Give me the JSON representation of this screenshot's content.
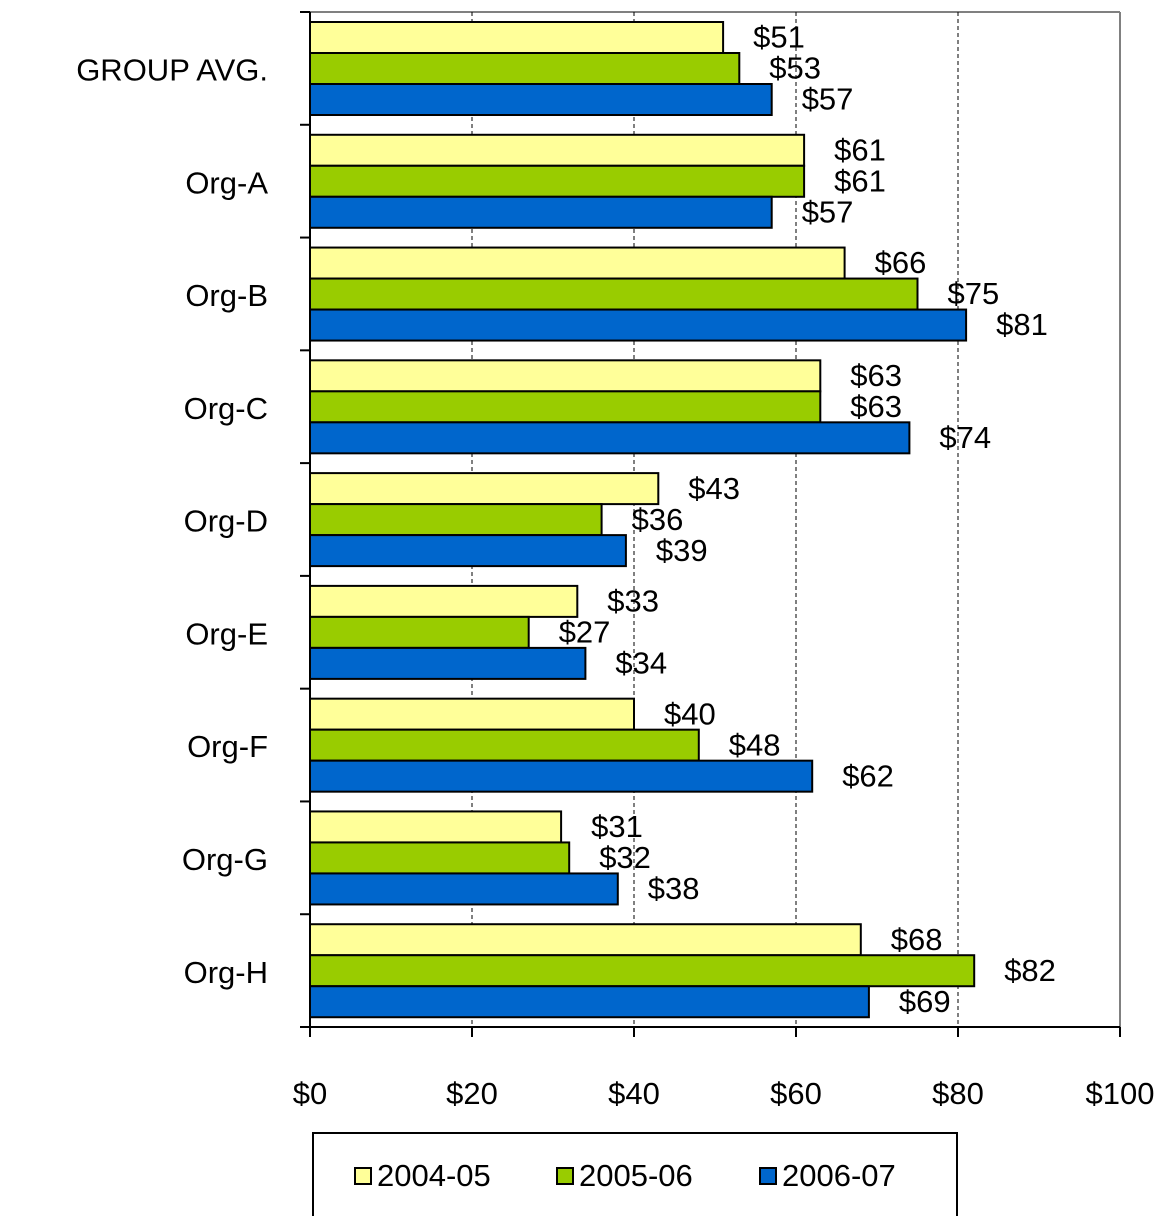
{
  "chart_data": {
    "type": "bar",
    "orientation": "horizontal",
    "categories": [
      "GROUP AVG.",
      "Org-A",
      "Org-B",
      "Org-C",
      "Org-D",
      "Org-E",
      "Org-F",
      "Org-G",
      "Org-H"
    ],
    "series": [
      {
        "name": "2004-05",
        "color": "#ffff99",
        "values": [
          51,
          61,
          66,
          63,
          43,
          33,
          40,
          31,
          68
        ],
        "value_labels": [
          "$51",
          "$61",
          "$66",
          "$63",
          "$43",
          "$33",
          "$40",
          "$31",
          "$68"
        ]
      },
      {
        "name": "2005-06",
        "color": "#99cc00",
        "values": [
          53,
          61,
          75,
          63,
          36,
          27,
          48,
          32,
          82
        ],
        "value_labels": [
          "$53",
          "$61",
          "$75",
          "$63",
          "$36",
          "$27",
          "$48",
          "$32",
          "$82"
        ]
      },
      {
        "name": "2006-07",
        "color": "#0066cc",
        "values": [
          57,
          57,
          81,
          74,
          39,
          34,
          62,
          38,
          69
        ],
        "value_labels": [
          "$57",
          "$57",
          "$81",
          "$74",
          "$39",
          "$34",
          "$62",
          "$38",
          "$69"
        ]
      }
    ],
    "xlim": [
      0,
      100
    ],
    "xticks": [
      {
        "value": 0,
        "label": "$0"
      },
      {
        "value": 20,
        "label": "$20"
      },
      {
        "value": 40,
        "label": "$40"
      },
      {
        "value": 60,
        "label": "$60"
      },
      {
        "value": 80,
        "label": "$80"
      },
      {
        "value": 100,
        "label": "$100"
      }
    ],
    "grid": true,
    "legend": "bottom"
  }
}
